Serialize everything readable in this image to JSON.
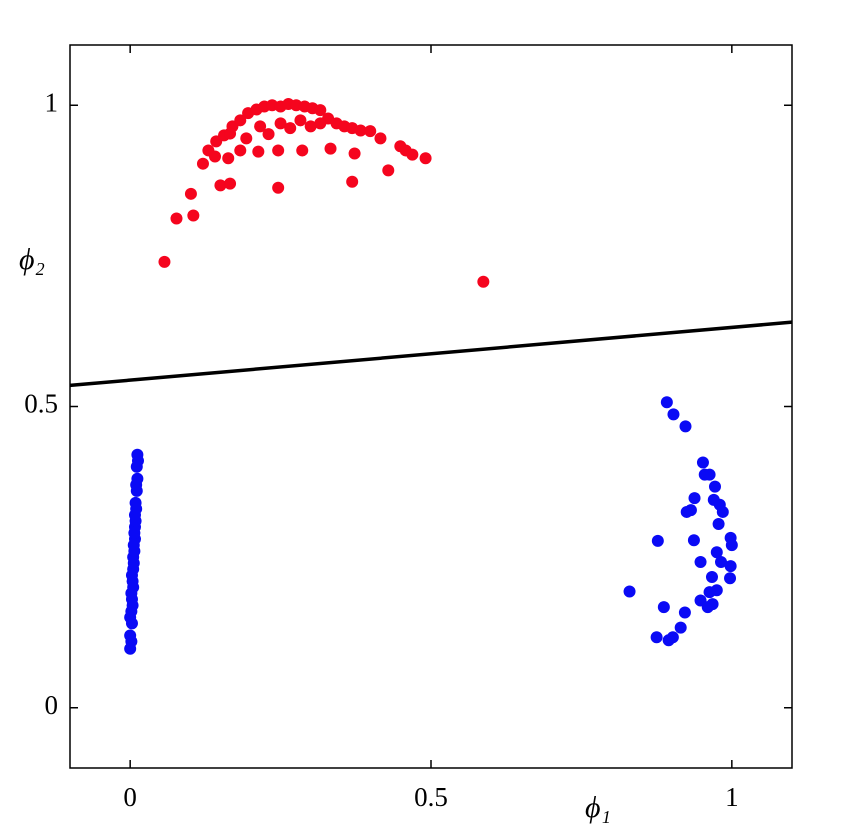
{
  "chart_data": {
    "type": "scatter",
    "xlabel": "ϕ₁",
    "ylabel": "ϕ₂",
    "xlim": [
      -0.1,
      1.1
    ],
    "ylim": [
      -0.1,
      1.1
    ],
    "xticks": [
      0,
      0.5,
      1
    ],
    "yticks": [
      0,
      0.5,
      1
    ],
    "boundary": {
      "color": "#000000",
      "x": [
        -0.1,
        1.1
      ],
      "y": [
        0.535,
        0.64
      ]
    },
    "series": [
      {
        "color": "#f5051e",
        "x": [
          0.057,
          0.077,
          0.101,
          0.105,
          0.121,
          0.13,
          0.143,
          0.156,
          0.17,
          0.183,
          0.196,
          0.21,
          0.223,
          0.236,
          0.25,
          0.263,
          0.276,
          0.29,
          0.303,
          0.316,
          0.329,
          0.343,
          0.356,
          0.369,
          0.383,
          0.399,
          0.416,
          0.449,
          0.458,
          0.469,
          0.491,
          0.15,
          0.166,
          0.246,
          0.369,
          0.429,
          0.587,
          0.183,
          0.213,
          0.246,
          0.286,
          0.333,
          0.373,
          0.216,
          0.25,
          0.283,
          0.316,
          0.193,
          0.23,
          0.266,
          0.3,
          0.163,
          0.141,
          0.166
        ],
        "y": [
          0.74,
          0.812,
          0.853,
          0.817,
          0.903,
          0.925,
          0.94,
          0.95,
          0.965,
          0.975,
          0.987,
          0.993,
          0.998,
          1.0,
          0.998,
          1.002,
          1.0,
          0.998,
          0.995,
          0.992,
          0.978,
          0.97,
          0.965,
          0.962,
          0.958,
          0.957,
          0.945,
          0.932,
          0.925,
          0.918,
          0.912,
          0.867,
          0.87,
          0.863,
          0.873,
          0.892,
          0.707,
          0.925,
          0.923,
          0.925,
          0.925,
          0.928,
          0.92,
          0.965,
          0.97,
          0.975,
          0.97,
          0.945,
          0.952,
          0.962,
          0.965,
          0.912,
          0.915,
          0.953
        ]
      },
      {
        "color": "#0a0af5",
        "x": [
          0.0,
          0.002,
          0.0,
          0.003,
          0.0,
          0.002,
          0.004,
          0.003,
          0.002,
          0.005,
          0.004,
          0.003,
          0.005,
          0.006,
          0.005,
          0.007,
          0.006,
          0.008,
          0.007,
          0.008,
          0.009,
          0.008,
          0.01,
          0.009,
          0.011,
          0.01,
          0.012,
          0.011,
          0.013,
          0.012,
          0.892,
          0.903,
          0.923,
          0.952,
          0.955,
          0.963,
          0.972,
          0.938,
          0.97,
          0.98,
          0.932,
          0.925,
          0.985,
          0.978,
          0.998,
          1.0,
          0.937,
          0.877,
          0.975,
          0.998,
          0.948,
          0.982,
          0.967,
          0.997,
          0.975,
          0.963,
          0.948,
          0.96,
          0.968,
          0.83,
          0.887,
          0.922,
          0.915,
          0.902,
          0.895,
          0.875
        ],
        "y": [
          0.098,
          0.11,
          0.12,
          0.14,
          0.15,
          0.16,
          0.17,
          0.18,
          0.19,
          0.2,
          0.21,
          0.22,
          0.23,
          0.24,
          0.25,
          0.26,
          0.27,
          0.28,
          0.29,
          0.3,
          0.31,
          0.32,
          0.33,
          0.34,
          0.36,
          0.37,
          0.38,
          0.4,
          0.41,
          0.42,
          0.507,
          0.487,
          0.467,
          0.407,
          0.387,
          0.387,
          0.367,
          0.348,
          0.345,
          0.337,
          0.328,
          0.325,
          0.325,
          0.305,
          0.282,
          0.27,
          0.278,
          0.277,
          0.258,
          0.235,
          0.242,
          0.242,
          0.217,
          0.215,
          0.195,
          0.192,
          0.178,
          0.167,
          0.172,
          0.193,
          0.167,
          0.158,
          0.133,
          0.117,
          0.112,
          0.117
        ]
      }
    ]
  }
}
